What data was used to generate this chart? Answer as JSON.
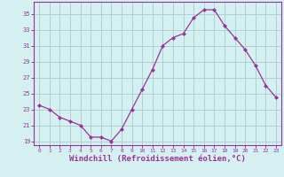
{
  "x": [
    0,
    1,
    2,
    3,
    4,
    5,
    6,
    7,
    8,
    9,
    10,
    11,
    12,
    13,
    14,
    15,
    16,
    17,
    18,
    19,
    20,
    21,
    22,
    23
  ],
  "y": [
    23.5,
    23.0,
    22.0,
    21.5,
    21.0,
    19.5,
    19.5,
    19.0,
    20.5,
    23.0,
    25.5,
    28.0,
    31.0,
    32.0,
    32.5,
    34.5,
    35.5,
    35.5,
    33.5,
    32.0,
    30.5,
    28.5,
    26.0,
    24.5
  ],
  "line_color": "#993399",
  "marker": "D",
  "marker_size": 2,
  "bg_color": "#d4f0f0",
  "grid_color": "#aacccc",
  "xlabel": "Windchill (Refroidissement éolien,°C)",
  "xlabel_fontsize": 6.5,
  "tick_color": "#993399",
  "tick_label_color": "#993399",
  "ylim": [
    18.5,
    36.5
  ],
  "xlim": [
    -0.5,
    23.5
  ],
  "yticks": [
    19,
    21,
    23,
    25,
    27,
    29,
    31,
    33,
    35
  ],
  "xticks": [
    0,
    1,
    2,
    3,
    4,
    5,
    6,
    7,
    8,
    9,
    10,
    11,
    12,
    13,
    14,
    15,
    16,
    17,
    18,
    19,
    20,
    21,
    22,
    23
  ]
}
